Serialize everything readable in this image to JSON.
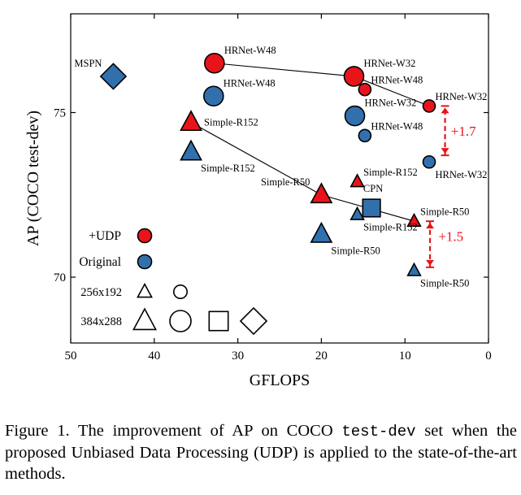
{
  "chart_data": {
    "type": "scatter",
    "xlabel": "GFLOPS",
    "ylabel": "AP (COCO test-dev)",
    "xlim": [
      50,
      0
    ],
    "ylim": [
      68,
      78
    ],
    "xticks": [
      50,
      40,
      30,
      20,
      10,
      0
    ],
    "yticks": [
      70,
      75
    ],
    "colors": {
      "udp": "#e8141a",
      "original": "#3270ad",
      "edge": "#000000",
      "arrow": "#e8141a"
    },
    "points": [
      {
        "group": "udp",
        "shape": "circle",
        "size": "large",
        "x": 32.8,
        "y": 76.5,
        "label": "HRNet-W48",
        "label_pos": "above-right"
      },
      {
        "group": "udp",
        "shape": "circle",
        "size": "large",
        "x": 16.1,
        "y": 76.1,
        "label": "HRNet-W32",
        "label_pos": "above-right"
      },
      {
        "group": "udp",
        "shape": "circle",
        "size": "small",
        "x": 14.8,
        "y": 75.7,
        "label": "HRNet-W48",
        "label_pos": "above-right"
      },
      {
        "group": "udp",
        "shape": "circle",
        "size": "small",
        "x": 7.1,
        "y": 75.2,
        "label": "HRNet-W32",
        "label_pos": "above-right"
      },
      {
        "group": "udp",
        "shape": "triangle",
        "size": "large",
        "x": 35.6,
        "y": 74.7,
        "label": "Simple-R152",
        "label_pos": "right"
      },
      {
        "group": "udp",
        "shape": "triangle",
        "size": "large",
        "x": 20.0,
        "y": 72.5,
        "label": "Simple-R50",
        "label_pos": "above-left"
      },
      {
        "group": "udp",
        "shape": "triangle",
        "size": "small",
        "x": 15.7,
        "y": 72.9,
        "label": "Simple-R152",
        "label_pos": "above-right"
      },
      {
        "group": "udp",
        "shape": "triangle",
        "size": "small",
        "x": 8.9,
        "y": 71.7,
        "label": "Simple-R50",
        "label_pos": "above-right"
      },
      {
        "group": "original",
        "shape": "diamond",
        "size": "large",
        "x": 44.9,
        "y": 76.1,
        "label": "MSPN",
        "label_pos": "above-left"
      },
      {
        "group": "original",
        "shape": "circle",
        "size": "large",
        "x": 32.9,
        "y": 75.5,
        "label": "HRNet-W48",
        "label_pos": "above-right"
      },
      {
        "group": "original",
        "shape": "circle",
        "size": "large",
        "x": 16.0,
        "y": 74.9,
        "label": "HRNet-W32",
        "label_pos": "above-right"
      },
      {
        "group": "original",
        "shape": "circle",
        "size": "small",
        "x": 14.8,
        "y": 74.3,
        "label": "HRNet-W48",
        "label_pos": "above-right"
      },
      {
        "group": "original",
        "shape": "circle",
        "size": "small",
        "x": 7.1,
        "y": 73.5,
        "label": "HRNet-W32",
        "label_pos": "below-right"
      },
      {
        "group": "original",
        "shape": "triangle",
        "size": "large",
        "x": 35.6,
        "y": 73.8,
        "label": "Simple-R152",
        "label_pos": "below-right"
      },
      {
        "group": "original",
        "shape": "triangle",
        "size": "large",
        "x": 20.0,
        "y": 71.3,
        "label": "Simple-R50",
        "label_pos": "below-right"
      },
      {
        "group": "original",
        "shape": "square",
        "size": "large",
        "x": 14.0,
        "y": 72.1,
        "label": "CPN",
        "label_pos": "above"
      },
      {
        "group": "original",
        "shape": "triangle",
        "size": "small",
        "x": 15.7,
        "y": 71.9,
        "label": "Simple-R152",
        "label_pos": "below-right"
      },
      {
        "group": "original",
        "shape": "triangle",
        "size": "small",
        "x": 8.9,
        "y": 70.2,
        "label": "Simple-R50",
        "label_pos": "below-right"
      }
    ],
    "lines": [
      {
        "points": [
          [
            32.8,
            76.5
          ],
          [
            16.1,
            76.1
          ],
          [
            7.1,
            75.2
          ]
        ]
      },
      {
        "points": [
          [
            35.6,
            74.7
          ],
          [
            20.0,
            72.5
          ],
          [
            8.9,
            71.7
          ]
        ]
      }
    ],
    "annotations": [
      {
        "text": "+1.7",
        "x": 5.2,
        "y_from": 73.7,
        "y_to": 75.2,
        "label_x": 4.5,
        "label_y": 74.3
      },
      {
        "text": "+1.5",
        "x": 7.0,
        "y_from": 70.3,
        "y_to": 71.7,
        "label_x": 6.0,
        "label_y": 71.1
      }
    ],
    "legend": {
      "placement": "lower-left",
      "groups": [
        {
          "label": "+UDP",
          "group": "udp"
        },
        {
          "label": "Original",
          "group": "original"
        }
      ],
      "sizes": [
        {
          "label": "256x192",
          "size": "small",
          "shapes": [
            "triangle",
            "circle"
          ]
        },
        {
          "label": "384x288",
          "size": "large",
          "shapes": [
            "triangle",
            "circle",
            "square",
            "diamond"
          ]
        }
      ]
    }
  },
  "caption": {
    "prefix": "Figure 1. The improvement of AP on COCO ",
    "code": "test-dev",
    "suffix": " set when the proposed Unbiased Data Processing (UDP) is applied to the state-of-the-art methods."
  }
}
